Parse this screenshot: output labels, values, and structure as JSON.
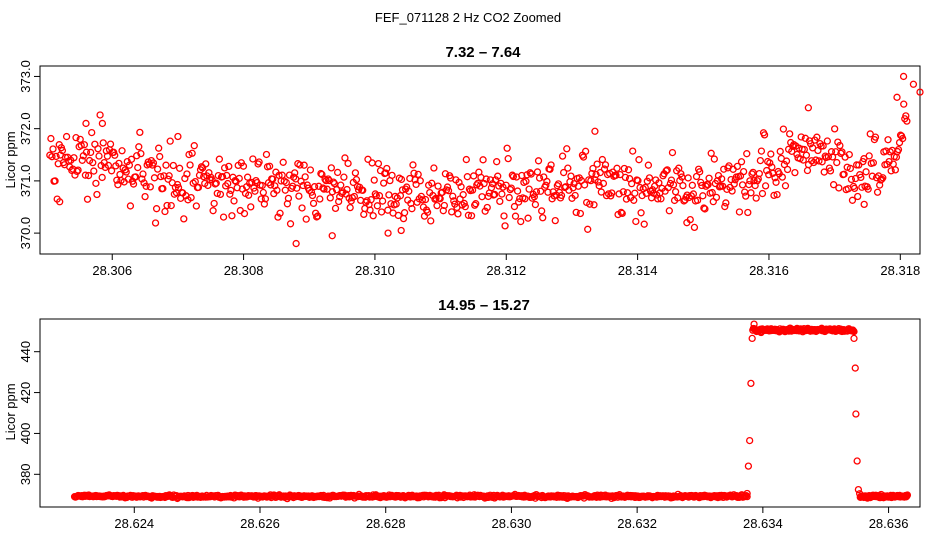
{
  "figure_title": "FEF_071128  2 Hz CO2 Zoomed",
  "colors": {
    "points": "#ff0000",
    "axis": "#000000",
    "background": "#ffffff"
  },
  "chart_data": [
    {
      "type": "scatter",
      "title": "7.32 – 7.64",
      "xlabel": "",
      "ylabel": "Licor ppm",
      "xlim": [
        28.3049,
        28.3183
      ],
      "ylim": [
        369.6,
        373.2
      ],
      "xticks": [
        28.306,
        28.308,
        28.31,
        28.312,
        28.314,
        28.316,
        28.318
      ],
      "xtick_labels": [
        "28.306",
        "28.308",
        "28.310",
        "28.312",
        "28.314",
        "28.316",
        "28.318"
      ],
      "yticks": [
        370.0,
        371.0,
        372.0,
        373.0
      ],
      "ytick_labels": [
        "370.0",
        "371.0",
        "372.0",
        "373.0"
      ],
      "marker": "open-circle",
      "grid": false,
      "series": [
        {
          "x_start": 28.30505,
          "x_end": 28.3181,
          "n_points": 820,
          "baseline_profile": [
            [
              28.30505,
              371.4
            ],
            [
              28.3055,
              371.45
            ],
            [
              28.306,
              371.25
            ],
            [
              28.3065,
              371.05
            ],
            [
              28.307,
              371.0
            ],
            [
              28.308,
              370.95
            ],
            [
              28.309,
              370.9
            ],
            [
              28.31,
              370.75
            ],
            [
              28.311,
              370.8
            ],
            [
              28.312,
              370.85
            ],
            [
              28.313,
              371.0
            ],
            [
              28.314,
              370.95
            ],
            [
              28.315,
              370.9
            ],
            [
              28.3158,
              370.95
            ],
            [
              28.3162,
              371.3
            ],
            [
              28.3166,
              371.6
            ],
            [
              28.317,
              371.4
            ],
            [
              28.3173,
              371.0
            ],
            [
              28.3176,
              371.3
            ],
            [
              28.3179,
              371.4
            ],
            [
              28.3181,
              372.3
            ]
          ],
          "scatter_sd": 0.3,
          "notable_points": [
            [
              28.3088,
              369.8
            ],
            [
              28.30935,
              369.95
            ],
            [
              28.3102,
              370.0
            ],
            [
              28.3104,
              370.05
            ],
            [
              28.307,
              371.85
            ],
            [
              28.3056,
              372.1
            ],
            [
              28.30585,
              372.1
            ],
            [
              28.31335,
              371.95
            ],
            [
              28.3166,
              372.4
            ],
            [
              28.31805,
              373.0
            ],
            [
              28.3182,
              372.85
            ],
            [
              28.3183,
              372.7
            ],
            [
              28.31795,
              372.6
            ],
            [
              28.3052,
              370.6
            ],
            [
              28.31745,
              370.55
            ],
            [
              28.31475,
              370.2
            ]
          ]
        }
      ]
    },
    {
      "type": "scatter",
      "title": "14.95 – 15.27",
      "xlabel": "",
      "ylabel": "Licor ppm",
      "xlim": [
        28.6225,
        28.6365
      ],
      "ylim": [
        364,
        456
      ],
      "xticks": [
        28.624,
        28.626,
        28.628,
        28.63,
        28.632,
        28.634,
        28.636
      ],
      "xtick_labels": [
        "28.624",
        "28.626",
        "28.628",
        "28.630",
        "28.632",
        "28.634",
        "28.636"
      ],
      "yticks": [
        380,
        400,
        420,
        440
      ],
      "ytick_labels": [
        "380",
        "400",
        "420",
        "440"
      ],
      "marker": "open-circle",
      "grid": false,
      "series": [
        {
          "segments": [
            {
              "x_start": 28.62305,
              "x_end": 28.63375,
              "level": 369.2,
              "n_points": 760,
              "scatter_sd": 0.35
            },
            {
              "x_start": 28.63385,
              "x_end": 28.63545,
              "level": 450.6,
              "n_points": 160,
              "scatter_sd": 0.45
            },
            {
              "x_start": 28.63555,
              "x_end": 28.6363,
              "level": 369.2,
              "n_points": 80,
              "scatter_sd": 0.35
            }
          ],
          "transition_points": [
            [
              28.63375,
              370.6
            ],
            [
              28.63377,
              384.0
            ],
            [
              28.63379,
              396.5
            ],
            [
              28.63381,
              424.5
            ],
            [
              28.63383,
              446.5
            ],
            [
              28.63384,
              450.5
            ],
            [
              28.63386,
              453.5
            ],
            [
              28.63545,
              446.5
            ],
            [
              28.63547,
              432.0
            ],
            [
              28.63548,
              409.5
            ],
            [
              28.6355,
              386.5
            ],
            [
              28.63552,
              372.5
            ],
            [
              28.63554,
              370.5
            ]
          ]
        }
      ]
    }
  ]
}
